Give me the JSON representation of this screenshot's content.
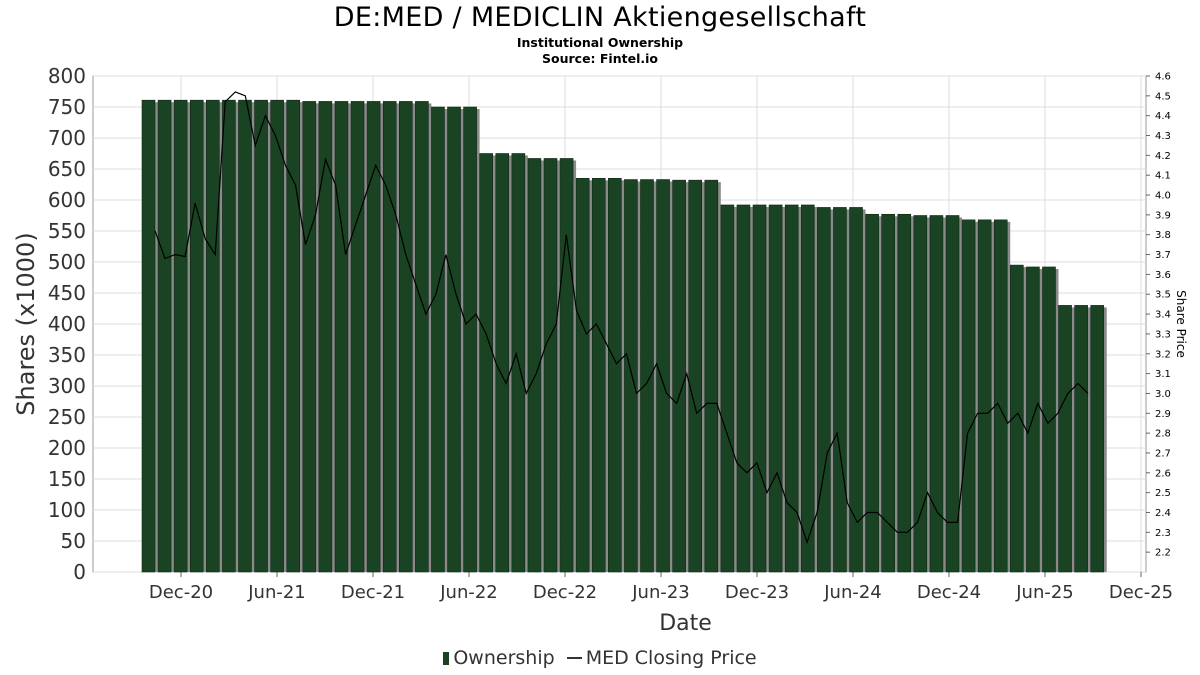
{
  "chart_data": {
    "type": "bar",
    "title": "DE:MED / MEDICLIN Aktiengesellschaft",
    "subtitle": "Institutional Ownership",
    "source": "Source: Fintel.io",
    "xlabel": "Date",
    "ylabel": "Shares (x1000)",
    "y2label": "Share Price",
    "ylim": [
      0,
      800
    ],
    "y2lim": [
      2.1,
      4.6
    ],
    "yticks": [
      "0",
      "50",
      "100",
      "150",
      "200",
      "250",
      "300",
      "350",
      "400",
      "450",
      "500",
      "550",
      "600",
      "650",
      "700",
      "750",
      "800"
    ],
    "y2ticks": [
      "2.2",
      "2.3",
      "2.4",
      "2.5",
      "2.6",
      "2.7",
      "2.8",
      "2.9",
      "3.0",
      "3.1",
      "3.2",
      "3.3",
      "3.4",
      "3.5",
      "3.6",
      "3.7",
      "3.8",
      "3.9",
      "4.0",
      "4.1",
      "4.2",
      "4.3",
      "4.4",
      "4.5",
      "4.6"
    ],
    "xticks": [
      "Dec-20",
      "Jun-21",
      "Dec-21",
      "Jun-22",
      "Dec-22",
      "Jun-23",
      "Dec-23",
      "Jun-24",
      "Dec-24",
      "Jun-25",
      "Dec-25"
    ],
    "grid": true,
    "legend_position": "bottom",
    "colors": {
      "bar": "#1a4323",
      "bar_shadow": "#8a8a8a",
      "line": "#000000",
      "grid": "#dddddd"
    },
    "series": [
      {
        "name": "Ownership",
        "type": "bar",
        "values": [
          761,
          761,
          761,
          761,
          761,
          761,
          761,
          761,
          761,
          761,
          759,
          759,
          759,
          759,
          759,
          759,
          759,
          759,
          750,
          750,
          750,
          675,
          675,
          675,
          667,
          667,
          667,
          635,
          635,
          635,
          633,
          633,
          633,
          632,
          632,
          632,
          592,
          592,
          592,
          592,
          592,
          592,
          588,
          588,
          588,
          577,
          577,
          577,
          575,
          575,
          575,
          568,
          568,
          568,
          495,
          492,
          492,
          430,
          430,
          430
        ]
      },
      {
        "name": "MED Closing Price",
        "type": "line",
        "values": [
          3.82,
          3.68,
          3.7,
          3.69,
          3.96,
          3.78,
          3.7,
          4.47,
          4.52,
          4.5,
          4.25,
          4.4,
          4.3,
          4.15,
          4.05,
          3.75,
          3.9,
          4.18,
          4.05,
          3.7,
          3.85,
          4.0,
          4.15,
          4.05,
          3.9,
          3.7,
          3.55,
          3.4,
          3.5,
          3.7,
          3.5,
          3.35,
          3.4,
          3.3,
          3.15,
          3.05,
          3.2,
          3.0,
          3.1,
          3.25,
          3.35,
          3.8,
          3.42,
          3.3,
          3.35,
          3.25,
          3.15,
          3.2,
          3.0,
          3.05,
          3.15,
          3.0,
          2.95,
          3.1,
          2.9,
          2.95,
          2.95,
          2.8,
          2.65,
          2.6,
          2.65,
          2.5,
          2.6,
          2.45,
          2.4,
          2.25,
          2.4,
          2.7,
          2.8,
          2.45,
          2.35,
          2.4,
          2.4,
          2.35,
          2.3,
          2.3,
          2.35,
          2.5,
          2.4,
          2.35,
          2.35,
          2.8,
          2.9,
          2.9,
          2.95,
          2.85,
          2.9,
          2.8,
          2.95,
          2.85,
          2.9,
          3.0,
          3.05,
          3.0
        ]
      }
    ]
  }
}
